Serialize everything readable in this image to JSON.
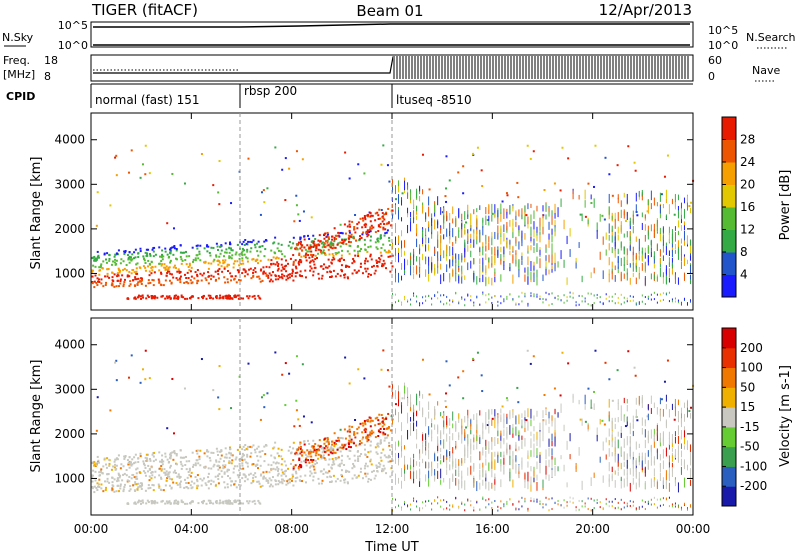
{
  "header": {
    "title": "TIGER (fitACF)",
    "beam": "Beam 01",
    "date": "12/Apr/2013"
  },
  "status_panels": {
    "nsky": {
      "label": "N.Sky",
      "ticks": [
        "10^5",
        "10^0"
      ]
    },
    "nsearch": {
      "label": "N.Search",
      "ticks": [
        "10^5",
        "10^0"
      ]
    },
    "freq": {
      "label_top": "Freq.",
      "label_unit": "[MHz]",
      "ticks": [
        "18",
        "8"
      ]
    },
    "nave": {
      "label": "Nave",
      "ticks": [
        "60",
        "0"
      ]
    },
    "cpid": {
      "label": "CPID",
      "segments": [
        "normal (fast) 151",
        "rbsp 200",
        "ltuseq -8510"
      ]
    }
  },
  "chart_data": [
    {
      "type": "heatmap",
      "ylabel": "Slant Range [km]",
      "yticks": [
        "1000",
        "2000",
        "3000",
        "4000"
      ],
      "xticks": [
        "00:00",
        "04:00",
        "08:00",
        "12:00",
        "16:00",
        "20:00",
        "00:00"
      ],
      "ylim": [
        180,
        4600
      ],
      "colorbar": {
        "label": "Power [dB]",
        "ticks": [
          "4",
          "8",
          "12",
          "16",
          "20",
          "24",
          "28"
        ],
        "colors": [
          "#1b1bff",
          "#2255cc",
          "#33aa44",
          "#55bb33",
          "#e2c800",
          "#f5a000",
          "#ee5500",
          "#e81a00"
        ]
      }
    },
    {
      "type": "heatmap",
      "ylabel": "Slant Range [km]",
      "yticks": [
        "1000",
        "2000",
        "3000",
        "4000"
      ],
      "xticks": [
        "00:00",
        "04:00",
        "08:00",
        "12:00",
        "16:00",
        "20:00",
        "00:00"
      ],
      "xlabel": "Time UT",
      "ylim": [
        180,
        4600
      ],
      "colorbar": {
        "label": "Velocity [m s-1]",
        "ticks": [
          "200",
          "100",
          "50",
          "15",
          "-15",
          "-50",
          "-100",
          "-200"
        ],
        "colors": [
          "#1a1aaa",
          "#2a5fc0",
          "#3aa050",
          "#66cc33",
          "#c8c8c0",
          "#f0b000",
          "#f07800",
          "#e83000",
          "#d80000"
        ]
      }
    }
  ]
}
